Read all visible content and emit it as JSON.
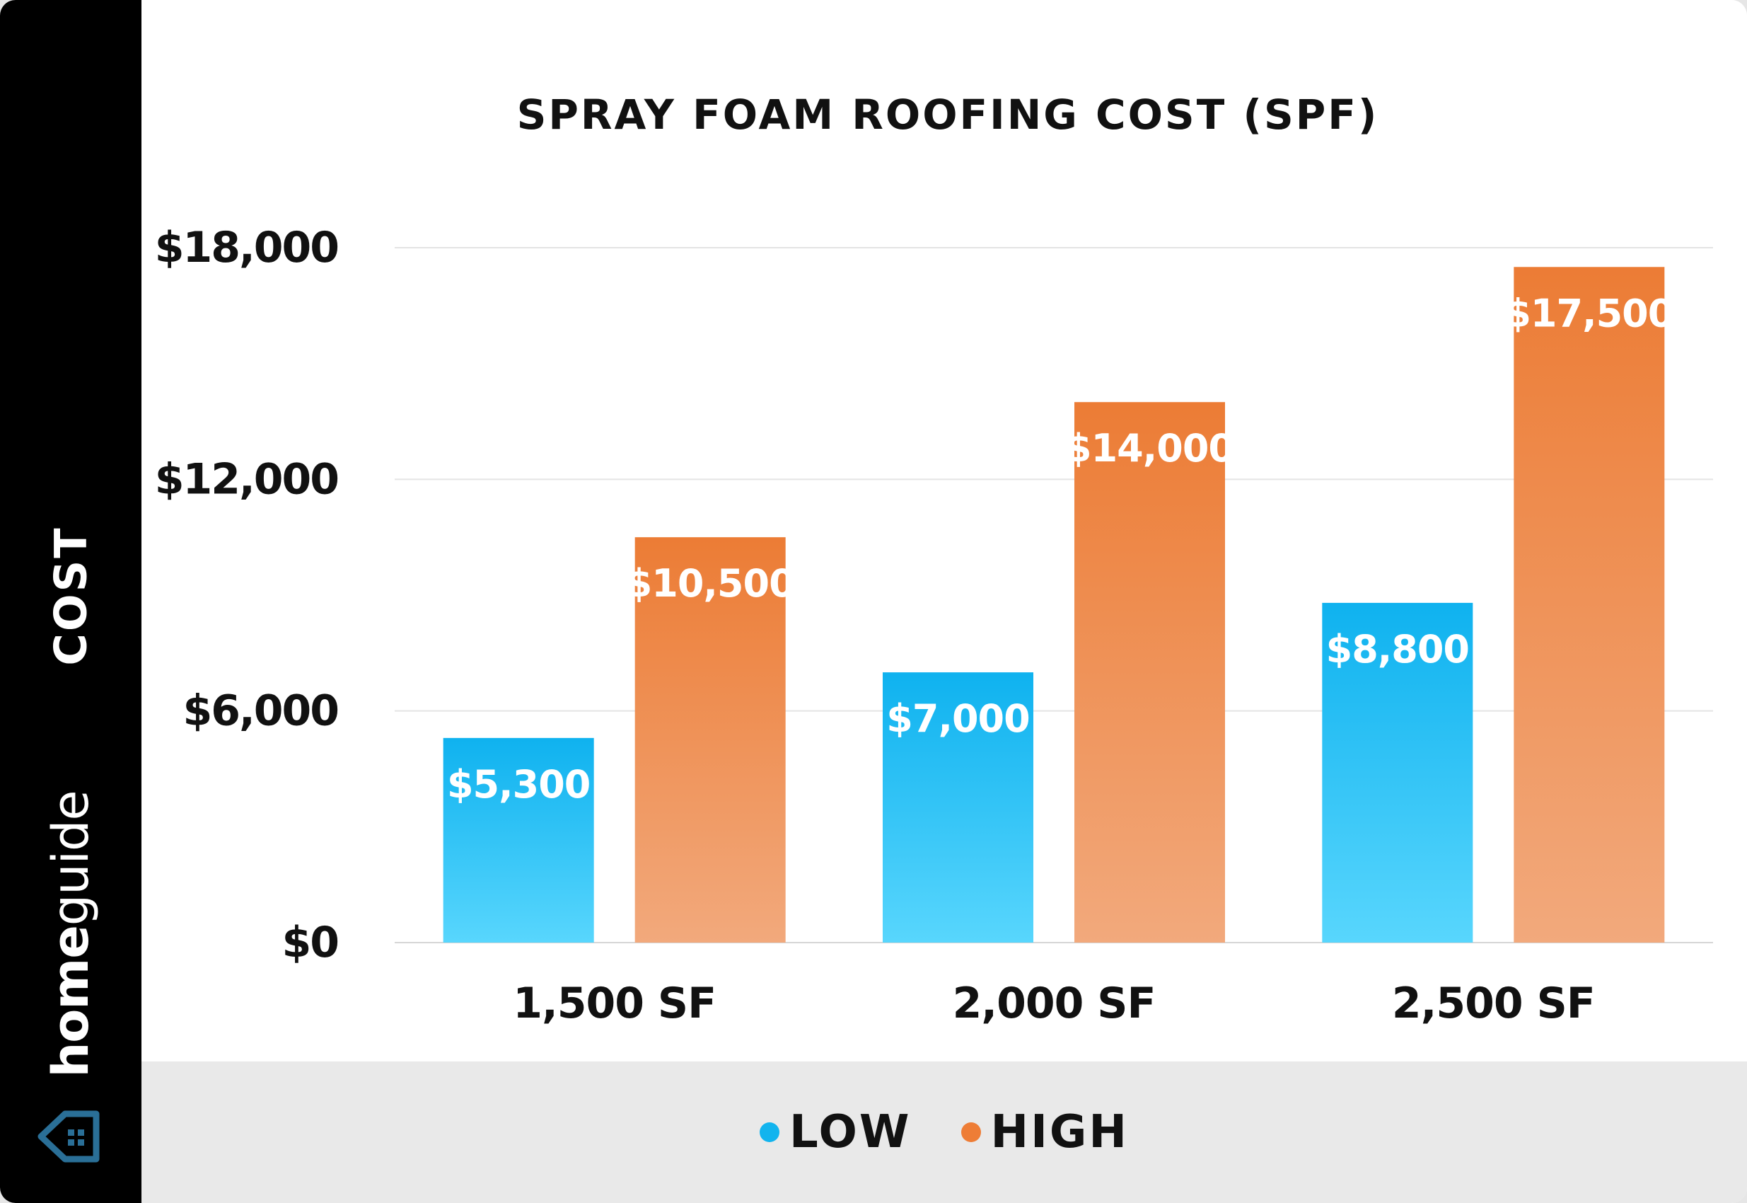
{
  "sidebar": {
    "axis_title": "COST",
    "brand_home": "home",
    "brand_guide": "guide"
  },
  "colors": {
    "low_top": "#0fb2ef",
    "low_bottom": "#58d6fd",
    "high_top": "#ec7c35",
    "high_bottom": "#f2a97c",
    "low_dot": "#12b4ee",
    "high_dot": "#ee7d36",
    "logo": "#2a6f97"
  },
  "legend": {
    "items": [
      {
        "label": "LOW",
        "color": "#12b4ee"
      },
      {
        "label": "HIGH",
        "color": "#ee7d36"
      }
    ]
  },
  "chart_data": {
    "type": "bar",
    "title": "SPRAY FOAM ROOFING COST (SPF)",
    "xlabel": "",
    "ylabel": "COST",
    "categories": [
      "1,500 SF",
      "2,000 SF",
      "2,500 SF"
    ],
    "series": [
      {
        "name": "LOW",
        "values": [
          5300,
          7000,
          8800
        ],
        "labels": [
          "$5,300",
          "$7,000",
          "$8,800"
        ]
      },
      {
        "name": "HIGH",
        "values": [
          10500,
          14000,
          17500
        ],
        "labels": [
          "$10,500",
          "$14,000",
          "$17,500"
        ]
      }
    ],
    "ylim": [
      0,
      18000
    ],
    "yticks": [
      0,
      6000,
      12000,
      18000
    ],
    "ytick_labels": [
      "$0",
      "$6,000",
      "$12,000",
      "$18,000"
    ],
    "grid": true,
    "legend_position": "bottom-center"
  }
}
